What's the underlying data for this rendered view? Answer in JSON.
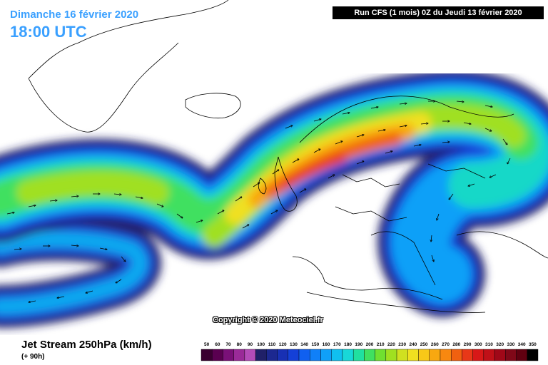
{
  "header": {
    "date": "Dimanche 16 février 2020",
    "time": "18:00 UTC",
    "run": "Run CFS (1 mois) 0Z du Jeudi 13 février 2020"
  },
  "copyright": "Copyright © 2020 Meteociel.fr",
  "footer": {
    "field_title": "Jet Stream 250hPa (km/h)",
    "lead_time": "(+ 90h)"
  },
  "legend": {
    "values": [
      "50",
      "60",
      "70",
      "80",
      "90",
      "100",
      "110",
      "120",
      "130",
      "140",
      "150",
      "160",
      "170",
      "180",
      "190",
      "200",
      "210",
      "220",
      "230",
      "240",
      "250",
      "260",
      "270",
      "280",
      "290",
      "300",
      "310",
      "320",
      "330",
      "340",
      "350"
    ],
    "colors": [
      "#3a0030",
      "#5a0050",
      "#7a1078",
      "#9a2a98",
      "#b44cb8",
      "#202068",
      "#1c2890",
      "#1830b4",
      "#1440d8",
      "#1060f0",
      "#1080f8",
      "#10a0f8",
      "#10c0f0",
      "#18d8d8",
      "#20e0a0",
      "#40e060",
      "#70e030",
      "#a0e020",
      "#d0e020",
      "#f0e020",
      "#f8c818",
      "#f8a810",
      "#f88810",
      "#f06010",
      "#e83818",
      "#d81818",
      "#c01018",
      "#a00818",
      "#800818",
      "#600010",
      "#000000"
    ]
  }
}
